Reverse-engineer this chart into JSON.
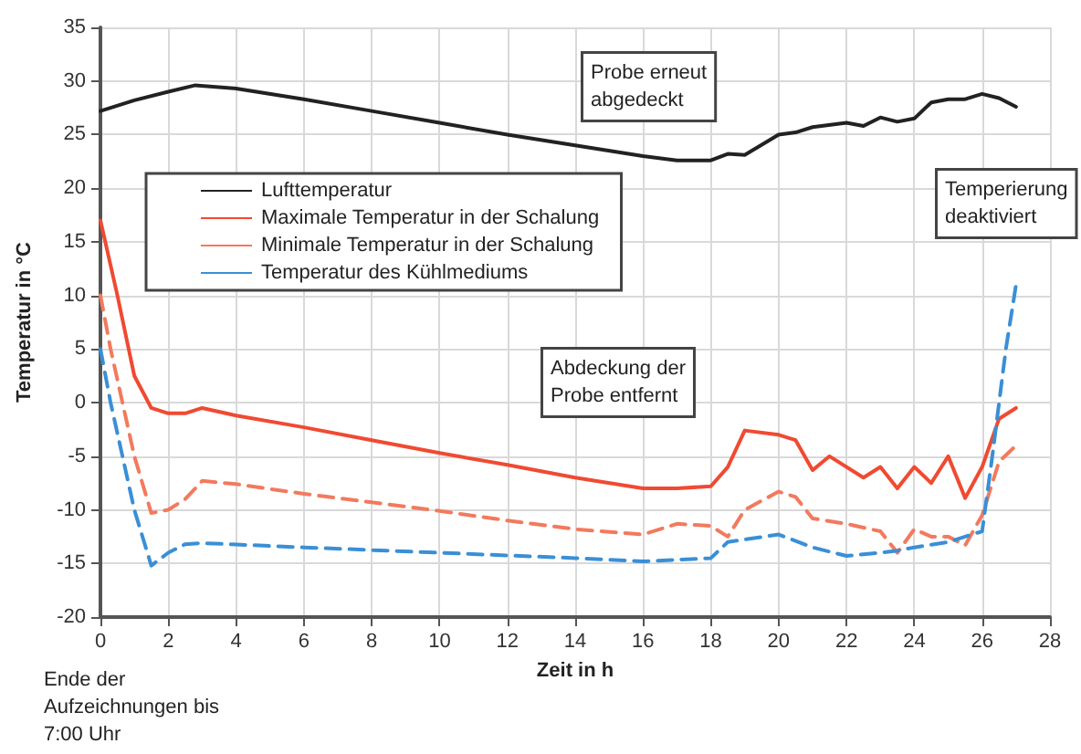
{
  "chart_data": {
    "type": "line",
    "xlabel": "Zeit in h",
    "ylabel": "Temperatur in °C",
    "xlim": [
      0,
      28
    ],
    "xticks": [
      0,
      2,
      4,
      6,
      8,
      10,
      12,
      14,
      16,
      18,
      20,
      22,
      24,
      26,
      28
    ],
    "ylim": [
      -20,
      35
    ],
    "yticks": [
      -20,
      -15,
      -10,
      -5,
      0,
      5,
      10,
      15,
      20,
      25,
      30,
      35
    ],
    "grid": true,
    "legend": "top left",
    "marker": "none",
    "annotations": [
      "Probe erneut\nabgedeckt",
      "Temperierung\ndeaktiviert",
      "Abdeckung der\nProbe entfernt",
      "Ende der\nAufzeichnungen bis\n7:00 Uhr"
    ],
    "series": [
      {
        "name": "Lufttemperatur",
        "color": "#222222",
        "line_style": "solid",
        "x": [
          0,
          1,
          2,
          2.8,
          4,
          6,
          8,
          10,
          12,
          14,
          16,
          17,
          18,
          18.5,
          19,
          20,
          20.5,
          21,
          22,
          22.5,
          23,
          23.5,
          24,
          24.5,
          25,
          25.5,
          26,
          26.5,
          27
        ],
        "values": [
          27.2,
          28.2,
          29,
          29.6,
          29.3,
          28.3,
          27.2,
          26.1,
          25,
          24,
          23,
          22.6,
          22.6,
          23.2,
          23.1,
          25,
          25.2,
          25.7,
          26.1,
          25.8,
          26.6,
          26.2,
          26.5,
          28,
          28.3,
          28.3,
          28.8,
          28.4,
          27.6
        ]
      },
      {
        "name": "Maximale Temperatur in der Schalung",
        "color": "#f04a32",
        "line_style": "solid",
        "x": [
          0,
          0.5,
          1,
          1.5,
          2,
          2.5,
          3,
          4,
          6,
          8,
          10,
          12,
          14,
          16,
          17,
          18,
          18.5,
          19,
          20,
          20.5,
          21,
          21.5,
          22.5,
          23,
          23.5,
          24,
          24.5,
          25,
          25.5,
          26,
          26.5,
          27
        ],
        "values": [
          17,
          10,
          2.5,
          -0.5,
          -1,
          -1,
          -0.5,
          -1.2,
          -2.3,
          -3.5,
          -4.7,
          -5.8,
          -7,
          -8,
          -8,
          -7.8,
          -6,
          -2.6,
          -3,
          -3.5,
          -6.3,
          -5,
          -7,
          -6,
          -8,
          -6,
          -7.5,
          -5,
          -8.9,
          -6,
          -1.5,
          -0.5
        ]
      },
      {
        "name": "Minimale Temperatur in der Schalung",
        "color": "#f27a5e",
        "line_style": "dashed",
        "x": [
          0,
          0.3,
          1,
          1.5,
          2,
          2.5,
          3,
          4,
          6,
          8,
          10,
          12,
          14,
          16,
          17,
          18,
          18.5,
          19,
          20,
          20.5,
          21,
          22,
          23,
          23.5,
          24,
          24.5,
          25,
          25.5,
          26,
          26.5,
          27
        ],
        "values": [
          10,
          5,
          -5,
          -10.3,
          -10,
          -9,
          -7.3,
          -7.6,
          -8.5,
          -9.3,
          -10.1,
          -11,
          -11.8,
          -12.3,
          -11.3,
          -11.5,
          -12.5,
          -10,
          -8.3,
          -8.8,
          -10.8,
          -11.3,
          -12,
          -14,
          -11.8,
          -12.5,
          -12.5,
          -13.3,
          -10.5,
          -5.5,
          -4
        ]
      },
      {
        "name": "Temperatur des Kühlmediums",
        "color": "#3a8fd6",
        "line_style": "dashed",
        "x": [
          0,
          0.3,
          1,
          1.5,
          2,
          2.5,
          3,
          6,
          10,
          14,
          16,
          18,
          18.5,
          20,
          21,
          22,
          23,
          23.5,
          24,
          25,
          25.5,
          26,
          26.3,
          26.7,
          27
        ],
        "values": [
          5,
          0,
          -10,
          -15.2,
          -14,
          -13.2,
          -13.1,
          -13.5,
          -14,
          -14.5,
          -14.8,
          -14.5,
          -13,
          -12.3,
          -13.5,
          -14.3,
          -14,
          -13.8,
          -13.5,
          -13,
          -12.5,
          -12,
          -5,
          5,
          11
        ]
      }
    ]
  }
}
